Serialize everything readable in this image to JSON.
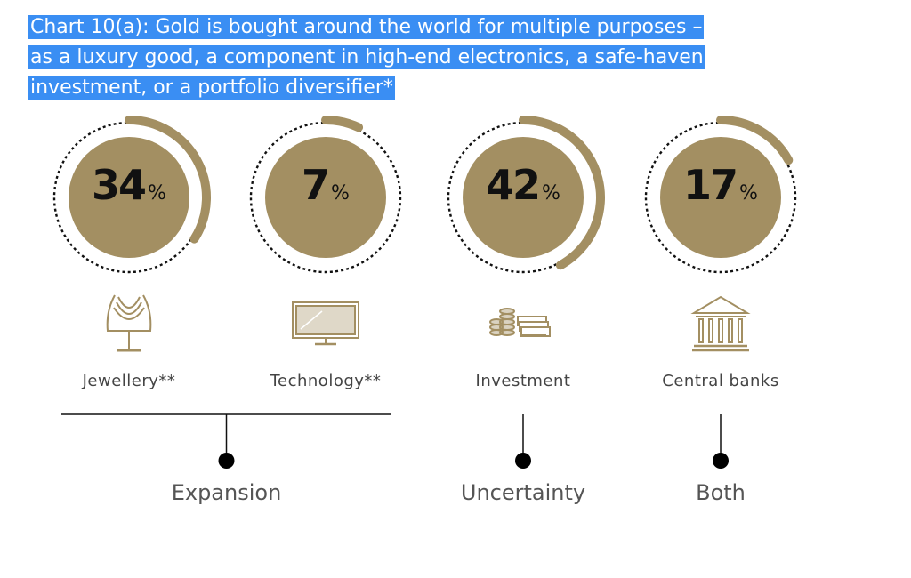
{
  "title": "Chart 10(a): Gold is bought around the world for multiple purposes – as a luxury good, a component in high-end electronics, a safe-haven investment, or a portfolio diversifier*",
  "title_lines": [
    "Chart 10(a): Gold is bought around the world for multiple purposes –",
    "as a luxury good, a component in high-end electronics, a safe-haven",
    "investment, or a portfolio diversifier*"
  ],
  "colors": {
    "gold": "#a38f62",
    "highlight": "#3a8ef3",
    "text": "#111111"
  },
  "chart_data": {
    "type": "pie",
    "unit": "%",
    "categories": [
      "Jewellery**",
      "Technology**",
      "Investment",
      "Central banks"
    ],
    "values": [
      34,
      7,
      42,
      17
    ],
    "icons": [
      "necklace-icon",
      "tv-icon",
      "coins-banknotes-icon",
      "bank-building-icon"
    ],
    "groups": [
      {
        "label": "Expansion",
        "members": [
          "Jewellery**",
          "Technology**"
        ]
      },
      {
        "label": "Uncertainty",
        "members": [
          "Investment"
        ]
      },
      {
        "label": "Both",
        "members": [
          "Central banks"
        ]
      }
    ]
  }
}
